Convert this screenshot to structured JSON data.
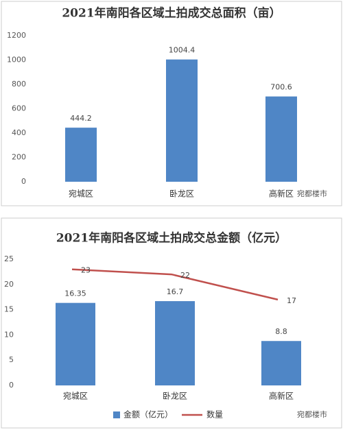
{
  "chart_data": [
    {
      "type": "bar",
      "title": "2021年南阳各区域土拍成交总面积（亩）",
      "categories": [
        "宛城区",
        "卧龙区",
        "高新区"
      ],
      "values": [
        444.2,
        1004.4,
        700.6
      ],
      "color": "#4f86c6",
      "ylim": [
        0,
        1200
      ],
      "yticks": [
        0,
        200,
        400,
        600,
        800,
        1000,
        1200
      ],
      "grid": false,
      "watermark": "宛都楼市"
    },
    {
      "type": "combo",
      "title": "2021年南阳各区域土拍成交总金额（亿元）",
      "categories": [
        "宛城区",
        "卧龙区",
        "高新区"
      ],
      "series": [
        {
          "name": "金额（亿元）",
          "type": "bar",
          "color": "#4f86c6",
          "values": [
            16.35,
            16.7,
            8.8
          ]
        },
        {
          "name": "数量",
          "type": "line",
          "color": "#c0504d",
          "values": [
            23,
            22,
            17
          ]
        }
      ],
      "ylim": [
        0,
        25
      ],
      "yticks": [
        0,
        5,
        10,
        15,
        20,
        25
      ],
      "grid": false,
      "legend": "bottom",
      "watermark": "宛都楼市"
    }
  ]
}
